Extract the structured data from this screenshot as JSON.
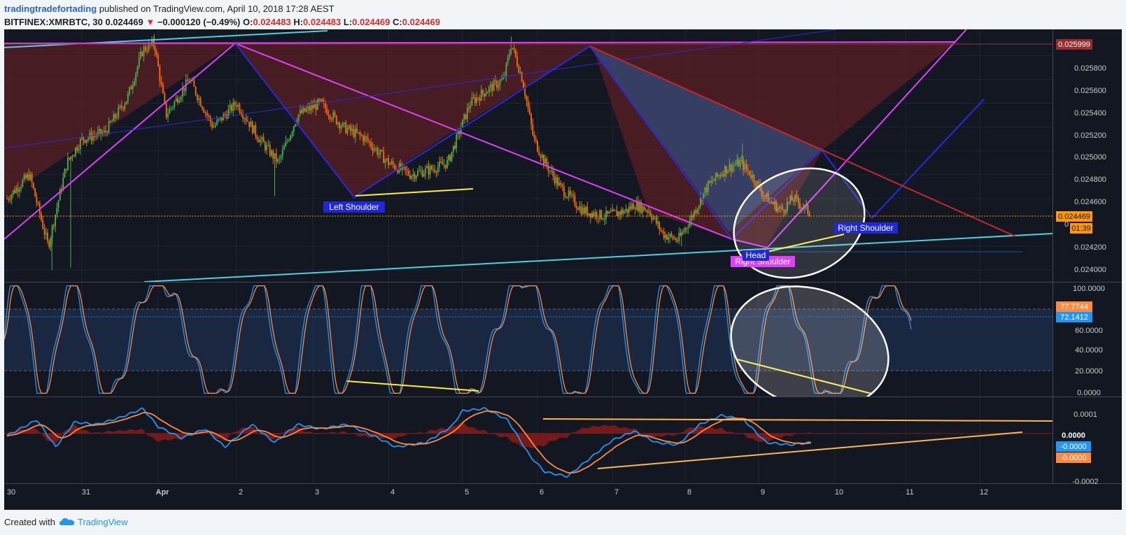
{
  "header": {
    "author": "tradingtradefortading",
    "published": "published on TradingView.com, April 10, 2018 17:28 AEST",
    "symbol": "BITFINEX:XMRBTC, 30",
    "last": "0.024469",
    "arrow": "▼",
    "change": "−0.000120 (−0.49%)",
    "o_label": "O:",
    "o_value": "0.024483",
    "h_label": "H:",
    "h_value": "0.024483",
    "l_label": "L:",
    "l_value": "0.024469",
    "c_label": "C:",
    "c_value": "0.024469"
  },
  "footer": {
    "created_with": "Created with",
    "brand": "TradingView"
  },
  "colors": {
    "background": "#131722",
    "up": "#4caf50",
    "down": "#ff6d00",
    "magenta": "#e040fb",
    "blue": "#2a2ad8",
    "cyan": "#4dd0e1",
    "yellow": "#ffeb3b",
    "orange": "#ffa726",
    "red_zone": "#5b1f24"
  },
  "chart_data": [
    {
      "type": "candlestick",
      "panel": "price",
      "symbol": "BITFINEX:XMRBTC",
      "interval": "30",
      "x_ticks": [
        "30",
        "31",
        "Apr",
        "2",
        "3",
        "4",
        "5",
        "6",
        "7",
        "8",
        "9",
        "10",
        "11",
        "12"
      ],
      "y_ticks": [
        "0.024000",
        "0.024200",
        "0.024600",
        "0.024800",
        "0.025000",
        "0.025200",
        "0.025400",
        "0.025600",
        "0.025800"
      ],
      "ylim": [
        0.0239,
        0.02602
      ],
      "price_labels": {
        "top_line": "0.025999",
        "last": "0.024469",
        "countdown": "01:39",
        "partial": "0"
      },
      "close_path": [
        {
          "x": 0,
          "y": 0.0246
        },
        {
          "x": 0.3,
          "y": 0.0248
        },
        {
          "x": 0.55,
          "y": 0.0242
        },
        {
          "x": 0.8,
          "y": 0.0249
        },
        {
          "x": 1.0,
          "y": 0.0251
        },
        {
          "x": 1.3,
          "y": 0.02515
        },
        {
          "x": 1.6,
          "y": 0.02545
        },
        {
          "x": 1.8,
          "y": 0.02585
        },
        {
          "x": 1.95,
          "y": 0.0259
        },
        {
          "x": 2.1,
          "y": 0.0253
        },
        {
          "x": 2.4,
          "y": 0.0256
        },
        {
          "x": 2.7,
          "y": 0.0252
        },
        {
          "x": 3.0,
          "y": 0.0254
        },
        {
          "x": 3.3,
          "y": 0.0251
        },
        {
          "x": 3.55,
          "y": 0.0249
        },
        {
          "x": 3.8,
          "y": 0.0253
        },
        {
          "x": 4.1,
          "y": 0.0254
        },
        {
          "x": 4.4,
          "y": 0.0252
        },
        {
          "x": 4.7,
          "y": 0.0251
        },
        {
          "x": 5.0,
          "y": 0.0249
        },
        {
          "x": 5.3,
          "y": 0.0248
        },
        {
          "x": 5.6,
          "y": 0.02485
        },
        {
          "x": 5.8,
          "y": 0.0249
        },
        {
          "x": 6.1,
          "y": 0.0254
        },
        {
          "x": 6.3,
          "y": 0.0255
        },
        {
          "x": 6.55,
          "y": 0.0256
        },
        {
          "x": 6.65,
          "y": 0.0259
        },
        {
          "x": 6.8,
          "y": 0.0256
        },
        {
          "x": 6.95,
          "y": 0.0251
        },
        {
          "x": 7.1,
          "y": 0.0249
        },
        {
          "x": 7.3,
          "y": 0.0247
        },
        {
          "x": 7.6,
          "y": 0.0245
        },
        {
          "x": 7.9,
          "y": 0.02445
        },
        {
          "x": 8.2,
          "y": 0.0245
        },
        {
          "x": 8.3,
          "y": 0.02455
        },
        {
          "x": 8.5,
          "y": 0.0245
        },
        {
          "x": 8.7,
          "y": 0.0243
        },
        {
          "x": 8.9,
          "y": 0.02425
        },
        {
          "x": 9.05,
          "y": 0.0244
        },
        {
          "x": 9.3,
          "y": 0.0247
        },
        {
          "x": 9.55,
          "y": 0.02485
        },
        {
          "x": 9.75,
          "y": 0.0249
        },
        {
          "x": 9.9,
          "y": 0.0248
        },
        {
          "x": 10.1,
          "y": 0.0246
        },
        {
          "x": 10.3,
          "y": 0.0245
        },
        {
          "x": 10.45,
          "y": 0.0246
        },
        {
          "x": 10.7,
          "y": 0.024469
        }
      ],
      "highs": [
        {
          "x": 1.95,
          "y": 0.02598
        },
        {
          "x": 6.65,
          "y": 0.02596
        },
        {
          "x": 9.78,
          "y": 0.02506
        }
      ],
      "lows": [
        {
          "x": 0.6,
          "y": 0.024
        },
        {
          "x": 0.85,
          "y": 0.02402
        },
        {
          "x": 3.5,
          "y": 0.02462
        },
        {
          "x": 8.95,
          "y": 0.0242
        }
      ],
      "annotations": [
        "Left Shoulder",
        "Head",
        "Right Shoulder",
        "Right Shoulder"
      ]
    },
    {
      "type": "line",
      "panel": "stochastic",
      "y_ticks": [
        "0.0000",
        "20.0000",
        "40.0000",
        "60.0000",
        "100.0000"
      ],
      "ylim": [
        -3,
        103
      ],
      "series": [
        {
          "value_label": "77.7744"
        },
        {
          "value_label": "72.1412"
        }
      ]
    },
    {
      "type": "line",
      "panel": "macd",
      "y_ticks": [
        "0.0001",
        "0.0000",
        "-0.0002"
      ],
      "ylim": [
        -0.00022,
        0.00016
      ],
      "series": [
        {
          "value_label": "-0.0000"
        },
        {
          "value_label": "-0.0000"
        }
      ],
      "histogram_label": "0.0000",
      "macd_path": [
        {
          "x": 0,
          "y": -1e-05
        },
        {
          "x": 0.4,
          "y": 6e-05
        },
        {
          "x": 0.65,
          "y": -6e-05
        },
        {
          "x": 0.9,
          "y": 5e-05
        },
        {
          "x": 1.2,
          "y": 4e-05
        },
        {
          "x": 1.5,
          "y": 7e-05
        },
        {
          "x": 1.8,
          "y": 0.00011
        },
        {
          "x": 2.0,
          "y": 3e-05
        },
        {
          "x": 2.3,
          "y": -2e-05
        },
        {
          "x": 2.6,
          "y": 2e-05
        },
        {
          "x": 2.85,
          "y": -6e-05
        },
        {
          "x": 3.2,
          "y": 4e-05
        },
        {
          "x": 3.5,
          "y": -4e-05
        },
        {
          "x": 3.8,
          "y": 4e-05
        },
        {
          "x": 4.1,
          "y": 2e-05
        },
        {
          "x": 4.45,
          "y": 4e-05
        },
        {
          "x": 4.8,
          "y": -1e-05
        },
        {
          "x": 5.1,
          "y": -6e-05
        },
        {
          "x": 5.5,
          "y": -4e-05
        },
        {
          "x": 5.85,
          "y": 3e-05
        },
        {
          "x": 6.0,
          "y": 0.0001
        },
        {
          "x": 6.3,
          "y": 0.00011
        },
        {
          "x": 6.6,
          "y": 6e-05
        },
        {
          "x": 6.9,
          "y": -0.0001
        },
        {
          "x": 7.1,
          "y": -0.00017
        },
        {
          "x": 7.4,
          "y": -0.00019
        },
        {
          "x": 7.7,
          "y": -0.00011
        },
        {
          "x": 8.0,
          "y": -3e-05
        },
        {
          "x": 8.3,
          "y": 1e-05
        },
        {
          "x": 8.6,
          "y": -4e-05
        },
        {
          "x": 8.9,
          "y": -5e-05
        },
        {
          "x": 9.2,
          "y": 4e-05
        },
        {
          "x": 9.5,
          "y": 8e-05
        },
        {
          "x": 9.8,
          "y": 6e-05
        },
        {
          "x": 10.1,
          "y": -4e-05
        },
        {
          "x": 10.4,
          "y": -5e-05
        },
        {
          "x": 10.7,
          "y": -4e-05
        }
      ]
    }
  ]
}
